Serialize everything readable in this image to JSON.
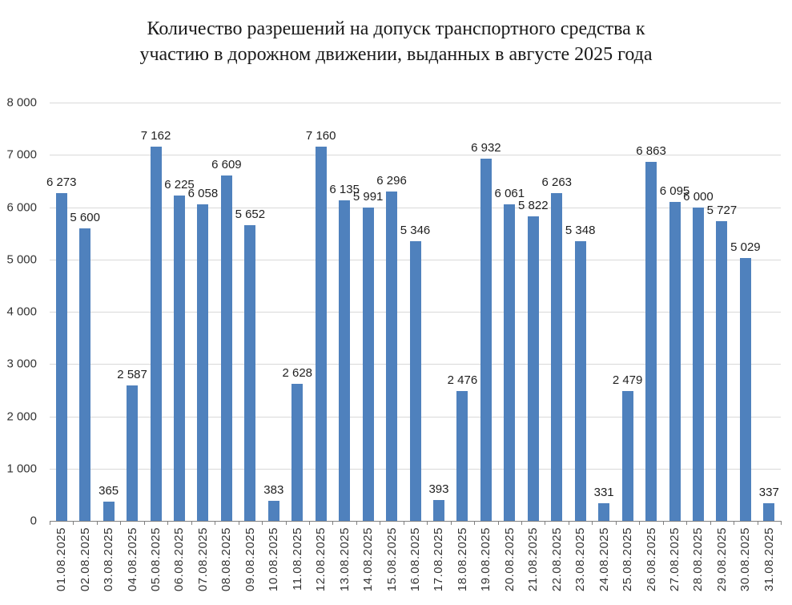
{
  "title_lines": [
    "Количество разрешений на допуск транспортного средства к",
    "участию в дорожном движении, выданных в августе 2025 года"
  ],
  "chart_data": {
    "type": "bar",
    "title": "Количество разрешений на допуск транспортного средства к участию в дорожном движении, выданных в августе 2025 года",
    "xlabel": "",
    "ylabel": "",
    "ylim": [
      0,
      8000
    ],
    "grid": true,
    "legend": "none",
    "bar_color": "#4f81bd",
    "gridline_color": "#d9d9d9",
    "axis_color": "#808080",
    "categories": [
      "01.08.2025",
      "02.08.2025",
      "03.08.2025",
      "04.08.2025",
      "05.08.2025",
      "06.08.2025",
      "07.08.2025",
      "08.08.2025",
      "09.08.2025",
      "10.08.2025",
      "11.08.2025",
      "12.08.2025",
      "13.08.2025",
      "14.08.2025",
      "15.08.2025",
      "16.08.2025",
      "17.08.2025",
      "18.08.2025",
      "19.08.2025",
      "20.08.2025",
      "21.08.2025",
      "22.08.2025",
      "23.08.2025",
      "24.08.2025",
      "25.08.2025",
      "26.08.2025",
      "27.08.2025",
      "28.08.2025",
      "29.08.2025",
      "30.08.2025",
      "31.08.2025"
    ],
    "values": [
      6273,
      5600,
      365,
      2587,
      7162,
      6225,
      6058,
      6609,
      5652,
      383,
      2628,
      7160,
      6135,
      5991,
      6296,
      5346,
      393,
      2476,
      6932,
      6061,
      5822,
      6263,
      5348,
      331,
      2479,
      6863,
      6095,
      6000,
      5727,
      5029,
      337
    ],
    "value_labels": [
      "6 273",
      "5 600",
      "365",
      "2 587",
      "7 162",
      "6 225",
      "6 058",
      "6 609",
      "5 652",
      "383",
      "2 628",
      "7 160",
      "6 135",
      "5 991",
      "6 296",
      "5 346",
      "393",
      "2 476",
      "6 932",
      "6 061",
      "5 822",
      "6 263",
      "5 348",
      "331",
      "2 479",
      "6 863",
      "6 095",
      "6 000",
      "5 727",
      "5 029",
      "337"
    ],
    "ytick_values": [
      0,
      1000,
      2000,
      3000,
      4000,
      5000,
      6000,
      7000,
      8000
    ],
    "ytick_labels": [
      "0",
      "1 000",
      "2 000",
      "3 000",
      "4 000",
      "5 000",
      "6 000",
      "7 000",
      "8 000"
    ]
  }
}
